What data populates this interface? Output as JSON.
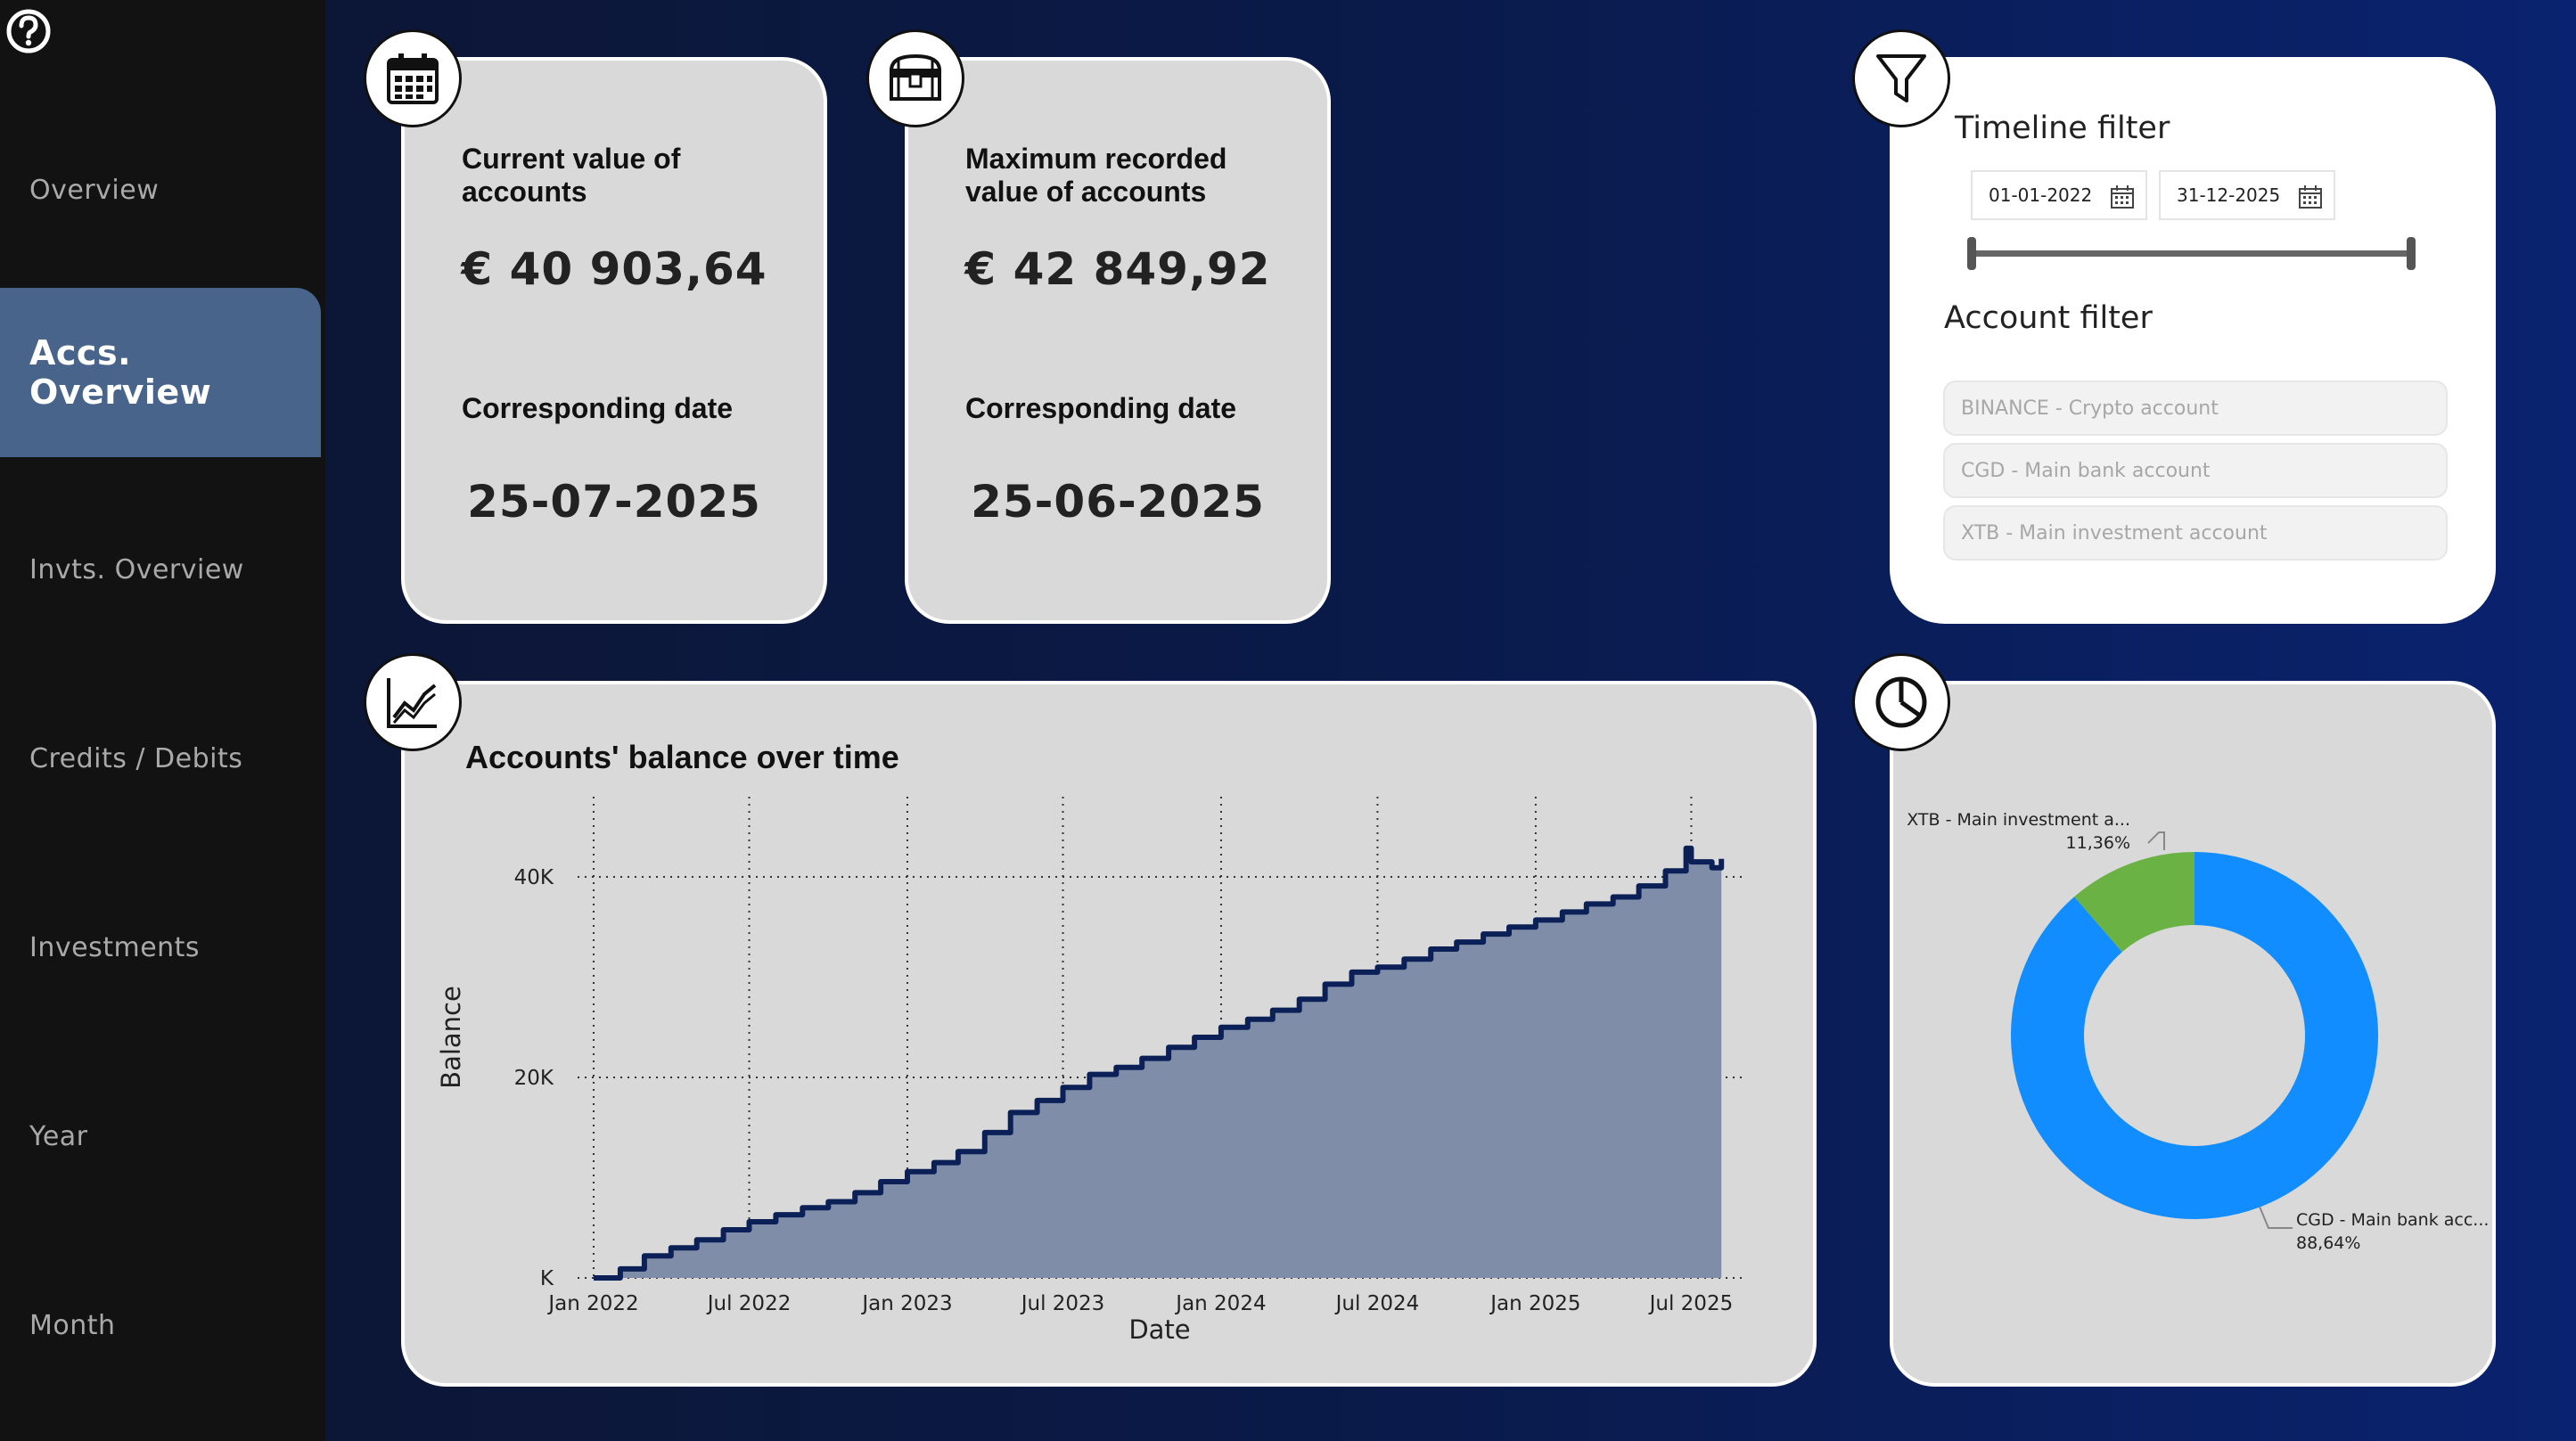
{
  "sidebar": {
    "help_icon": "question-circle-icon",
    "items": [
      {
        "label": "Overview",
        "active": false
      },
      {
        "label": "Accs. Overview",
        "active": true
      },
      {
        "label": "Invts. Overview",
        "active": false
      },
      {
        "label": "Credits / Debits",
        "active": false
      },
      {
        "label": "Investments",
        "active": false
      },
      {
        "label": "Year",
        "active": false
      },
      {
        "label": "Month",
        "active": false
      }
    ]
  },
  "kpi_current": {
    "icon": "calendar-icon",
    "label": "Current value of accounts",
    "value": "€ 40 903,64",
    "date_label": "Corresponding date",
    "date": "25-07-2025"
  },
  "kpi_max": {
    "icon": "treasure-chest-icon",
    "label": "Maximum recorded value of accounts",
    "value": "€ 42 849,92",
    "date_label": "Corresponding date",
    "date": "25-06-2025"
  },
  "filters": {
    "icon": "filter-icon",
    "timeline_title": "Timeline filter",
    "start_date": "01-01-2022",
    "end_date": "31-12-2025",
    "account_title": "Account filter",
    "accounts": [
      "BINANCE - Crypto account",
      "CGD - Main bank account",
      "XTB - Main investment account"
    ]
  },
  "balance_chart": {
    "icon": "line-chart-icon",
    "title": "Accounts' balance over time",
    "chart_data": {
      "type": "area",
      "xlabel": "Date",
      "ylabel": "Balance",
      "x_ticks": [
        "Jan 2022",
        "Jul 2022",
        "Jan 2023",
        "Jul 2023",
        "Jan 2024",
        "Jul 2024",
        "Jan 2025",
        "Jul 2025"
      ],
      "y_ticks": [
        "K",
        "20K",
        "40K"
      ],
      "ylim": [
        0,
        48000
      ],
      "x_range": [
        "2022-01-01",
        "2025-08-10"
      ],
      "grid": true,
      "fill_color": "#7f8da8",
      "line_color": "#0b2057",
      "x": [
        "2022-01-01",
        "2022-02-01",
        "2022-03-01",
        "2022-04-01",
        "2022-05-01",
        "2022-06-01",
        "2022-07-01",
        "2022-08-01",
        "2022-09-01",
        "2022-10-01",
        "2022-11-01",
        "2022-12-01",
        "2023-01-01",
        "2023-02-01",
        "2023-03-01",
        "2023-04-01",
        "2023-05-01",
        "2023-06-01",
        "2023-07-01",
        "2023-08-01",
        "2023-09-01",
        "2023-10-01",
        "2023-11-01",
        "2023-12-01",
        "2024-01-01",
        "2024-02-01",
        "2024-03-01",
        "2024-04-01",
        "2024-05-01",
        "2024-06-01",
        "2024-07-01",
        "2024-08-01",
        "2024-09-01",
        "2024-10-01",
        "2024-11-01",
        "2024-12-01",
        "2025-01-01",
        "2025-02-01",
        "2025-03-01",
        "2025-04-01",
        "2025-05-01",
        "2025-06-01",
        "2025-06-25",
        "2025-07-01",
        "2025-07-25",
        "2025-08-05"
      ],
      "y": [
        0,
        900,
        2200,
        3000,
        3800,
        4800,
        5600,
        6300,
        7000,
        7600,
        8500,
        9600,
        10600,
        11500,
        12600,
        14500,
        16500,
        17700,
        19000,
        20300,
        21000,
        21900,
        23000,
        24000,
        25000,
        25800,
        26700,
        27800,
        29300,
        30500,
        31000,
        31800,
        32800,
        33500,
        34300,
        35000,
        35700,
        36500,
        37300,
        38000,
        39100,
        40600,
        42849.92,
        41500,
        40903.64,
        41800
      ]
    }
  },
  "donut_chart": {
    "icon": "pie-chart-icon",
    "chart_data": {
      "type": "pie",
      "labels": [
        "CGD - Main bank acc...",
        "XTB - Main investment a..."
      ],
      "values": [
        88.64,
        11.36
      ],
      "value_labels": [
        "88,64%",
        "11,36%"
      ],
      "colors": [
        "#118dff",
        "#6bb244"
      ]
    }
  }
}
